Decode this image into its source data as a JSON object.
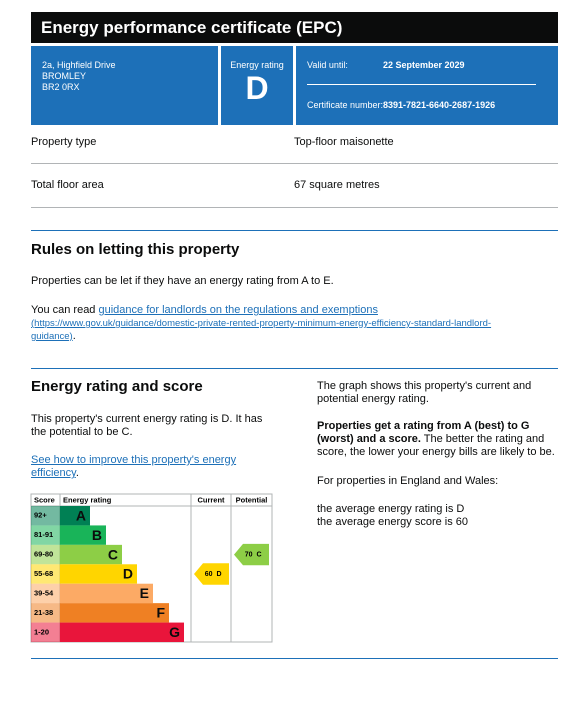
{
  "header": {
    "title": "Energy performance certificate (EPC)"
  },
  "summary": {
    "address": [
      "2a, Highfield Drive",
      "BROMLEY",
      "BR2 0RX"
    ],
    "rating_label": "Energy rating",
    "rating": "D",
    "valid_label": "Valid until:",
    "valid_date": "22 September 2029",
    "cert_label": "Certificate number:",
    "cert_number": "8391-7821-6640-2687-1926"
  },
  "details": [
    [
      "Property type",
      "Top-floor maisonette"
    ],
    [
      "Total floor area",
      "67 square metres"
    ]
  ],
  "rules": {
    "heading": "Rules on letting this property",
    "text": "Properties can be let if they have an energy rating from A to E.",
    "link_prefix": "You can read ",
    "link_text": "guidance for landlords on the regulations and exemptions",
    "link_url": "(https://www.gov.uk/guidance/domestic-private-rented-property-minimum-energy-efficiency-standard-landlord-guidance)",
    "link_suffix": "."
  },
  "rating": {
    "heading": "Energy rating and score",
    "text": "This property's current energy rating is D. It has the potential to be C.",
    "link": "See how to improve this property's energy efficiency",
    "link_suffix": "."
  },
  "info": {
    "p1": "The graph shows this property's current and potential energy rating.",
    "p2_bold": "Properties get a rating from A (best) to G (worst) and a score.",
    "p2_rest": " The better the rating and score, the lower your energy bills are likely to be.",
    "p3": "For properties in England and Wales:",
    "p4": [
      "the average energy rating is D",
      "the average energy score is 60"
    ]
  },
  "graph": {
    "headers": [
      "Score",
      "Energy rating",
      "Current",
      "Potential"
    ],
    "bands": [
      {
        "score": "92+",
        "letter": "A",
        "color": "#008054"
      },
      {
        "score": "81-91",
        "letter": "B",
        "color": "#19b459"
      },
      {
        "score": "69-80",
        "letter": "C",
        "color": "#8dce46"
      },
      {
        "score": "55-68",
        "letter": "D",
        "color": "#ffd500"
      },
      {
        "score": "39-54",
        "letter": "E",
        "color": "#fcaa65"
      },
      {
        "score": "21-38",
        "letter": "F",
        "color": "#ef8023"
      },
      {
        "score": "1-20",
        "letter": "G",
        "color": "#e9153b"
      }
    ],
    "current": {
      "score": 60,
      "letter": "D",
      "band": 3
    },
    "potential": {
      "score": 70,
      "letter": "C",
      "band": 2
    }
  }
}
